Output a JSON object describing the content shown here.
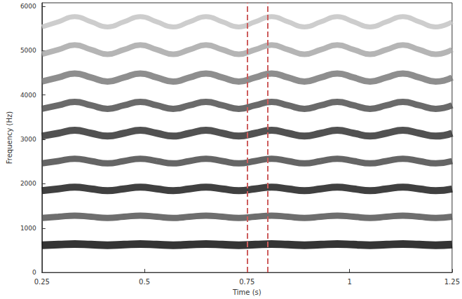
{
  "chart_data": {
    "type": "line",
    "x_label": "Time (s)",
    "y_label": "Frequency (Hz)",
    "xlim": [
      0.25,
      1.25
    ],
    "xticks": [
      0.25,
      0.5,
      0.75,
      1,
      1.25
    ],
    "ylim": [
      0,
      6080
    ],
    "yticks": [
      0,
      1000,
      2000,
      3000,
      4000,
      5000,
      6000
    ],
    "grid": false,
    "x": [
      0.25,
      0.29,
      0.33,
      0.37,
      0.41,
      0.45,
      0.49,
      0.53,
      0.57,
      0.61,
      0.65,
      0.69,
      0.73,
      0.77,
      0.81,
      0.85,
      0.89,
      0.93,
      0.97,
      1.01,
      1.05,
      1.09,
      1.13,
      1.17,
      1.21,
      1.25
    ],
    "series": [
      {
        "color": "#111111",
        "values": [
          615,
          628,
          641,
          628,
          615,
          628,
          641,
          628,
          615,
          628,
          641,
          628,
          615,
          628,
          641,
          628,
          615,
          628,
          641,
          628,
          615,
          628,
          641,
          628,
          615,
          628
        ]
      },
      {
        "color": "#555555",
        "values": [
          1230,
          1256,
          1282,
          1256,
          1230,
          1256,
          1282,
          1256,
          1230,
          1256,
          1282,
          1256,
          1230,
          1256,
          1282,
          1256,
          1230,
          1256,
          1282,
          1256,
          1230,
          1256,
          1282,
          1256,
          1230,
          1256
        ]
      },
      {
        "color": "#1e1e1e",
        "values": [
          1845,
          1884,
          1923,
          1884,
          1845,
          1884,
          1923,
          1884,
          1845,
          1884,
          1923,
          1884,
          1845,
          1884,
          1923,
          1884,
          1845,
          1884,
          1923,
          1884,
          1845,
          1884,
          1923,
          1884,
          1845,
          1884
        ]
      },
      {
        "color": "#4a4a4a",
        "values": [
          2460,
          2512,
          2564,
          2512,
          2460,
          2512,
          2564,
          2512,
          2460,
          2512,
          2564,
          2512,
          2460,
          2512,
          2564,
          2512,
          2460,
          2512,
          2564,
          2512,
          2460,
          2512,
          2564,
          2512,
          2460,
          2512
        ]
      },
      {
        "color": "#333333",
        "values": [
          3075,
          3140,
          3205,
          3140,
          3075,
          3140,
          3205,
          3140,
          3075,
          3140,
          3205,
          3140,
          3075,
          3140,
          3205,
          3140,
          3075,
          3140,
          3205,
          3140,
          3075,
          3140,
          3205,
          3140,
          3075,
          3140
        ]
      },
      {
        "color": "#505050",
        "values": [
          3690,
          3768,
          3846,
          3768,
          3690,
          3768,
          3846,
          3768,
          3690,
          3768,
          3846,
          3768,
          3690,
          3768,
          3846,
          3768,
          3690,
          3768,
          3846,
          3768,
          3690,
          3768,
          3846,
          3768,
          3690,
          3768
        ]
      },
      {
        "color": "#7a7a7a",
        "values": [
          4305,
          4396,
          4487,
          4396,
          4305,
          4396,
          4487,
          4396,
          4305,
          4396,
          4487,
          4396,
          4305,
          4396,
          4487,
          4396,
          4305,
          4396,
          4487,
          4396,
          4305,
          4396,
          4487,
          4396,
          4305,
          4396
        ]
      },
      {
        "color": "#a8a8a8",
        "values": [
          4920,
          5024,
          5128,
          5024,
          4920,
          5024,
          5128,
          5024,
          4920,
          5024,
          5128,
          5024,
          4920,
          5024,
          5128,
          5024,
          4920,
          5024,
          5128,
          5024,
          4920,
          5024,
          5128,
          5024,
          4920,
          5024
        ]
      },
      {
        "color": "#c4c4c4",
        "values": [
          5535,
          5652,
          5769,
          5652,
          5535,
          5652,
          5769,
          5652,
          5535,
          5652,
          5769,
          5652,
          5535,
          5652,
          5769,
          5652,
          5535,
          5652,
          5769,
          5652,
          5535,
          5652,
          5769,
          5652,
          5535,
          5652
        ]
      }
    ],
    "vlines": {
      "values": [
        0.75,
        0.8
      ],
      "color": "#cd5c5c",
      "line_style": "dashed"
    }
  }
}
